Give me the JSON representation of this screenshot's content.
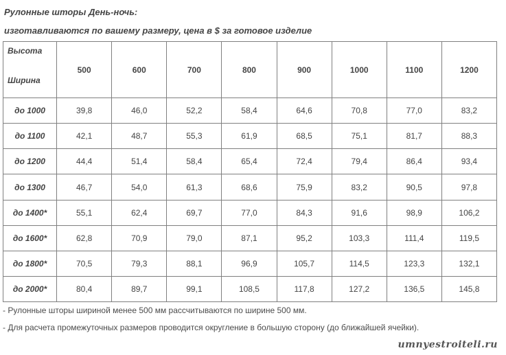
{
  "heading": {
    "line1": "Рулонные шторы День-ночь:",
    "line2": "изготавливаются по вашему размеру, цена в $ за готовое изделие"
  },
  "table": {
    "corner_height_label": "Высота",
    "corner_width_label": "Ширина",
    "heights": [
      "500",
      "600",
      "700",
      "800",
      "900",
      "1000",
      "1100",
      "1200"
    ],
    "rows": [
      {
        "width": "до 1000",
        "values": [
          "39,8",
          "46,0",
          "52,2",
          "58,4",
          "64,6",
          "70,8",
          "77,0",
          "83,2"
        ]
      },
      {
        "width": "до 1100",
        "values": [
          "42,1",
          "48,7",
          "55,3",
          "61,9",
          "68,5",
          "75,1",
          "81,7",
          "88,3"
        ]
      },
      {
        "width": "до 1200",
        "values": [
          "44,4",
          "51,4",
          "58,4",
          "65,4",
          "72,4",
          "79,4",
          "86,4",
          "93,4"
        ]
      },
      {
        "width": "до 1300",
        "values": [
          "46,7",
          "54,0",
          "61,3",
          "68,6",
          "75,9",
          "83,2",
          "90,5",
          "97,8"
        ]
      },
      {
        "width": "до 1400*",
        "values": [
          "55,1",
          "62,4",
          "69,7",
          "77,0",
          "84,3",
          "91,6",
          "98,9",
          "106,2"
        ]
      },
      {
        "width": "до 1600*",
        "values": [
          "62,8",
          "70,9",
          "79,0",
          "87,1",
          "95,2",
          "103,3",
          "111,4",
          "119,5"
        ]
      },
      {
        "width": "до 1800*",
        "values": [
          "70,5",
          "79,3",
          "88,1",
          "96,9",
          "105,7",
          "114,5",
          "123,3",
          "132,1"
        ]
      },
      {
        "width": "до 2000*",
        "values": [
          "80,4",
          "89,7",
          "99,1",
          "108,5",
          "117,8",
          "127,2",
          "136,5",
          "145,8"
        ]
      }
    ]
  },
  "notes": [
    "- Рулонные шторы  шириной менее 500 мм рассчитываются по ширине 500 мм.",
    "- Для расчета промежуточных размеров проводится округление в большую сторону (до ближайшей ячейки)."
  ],
  "watermark": "umnyestroiteli.ru"
}
